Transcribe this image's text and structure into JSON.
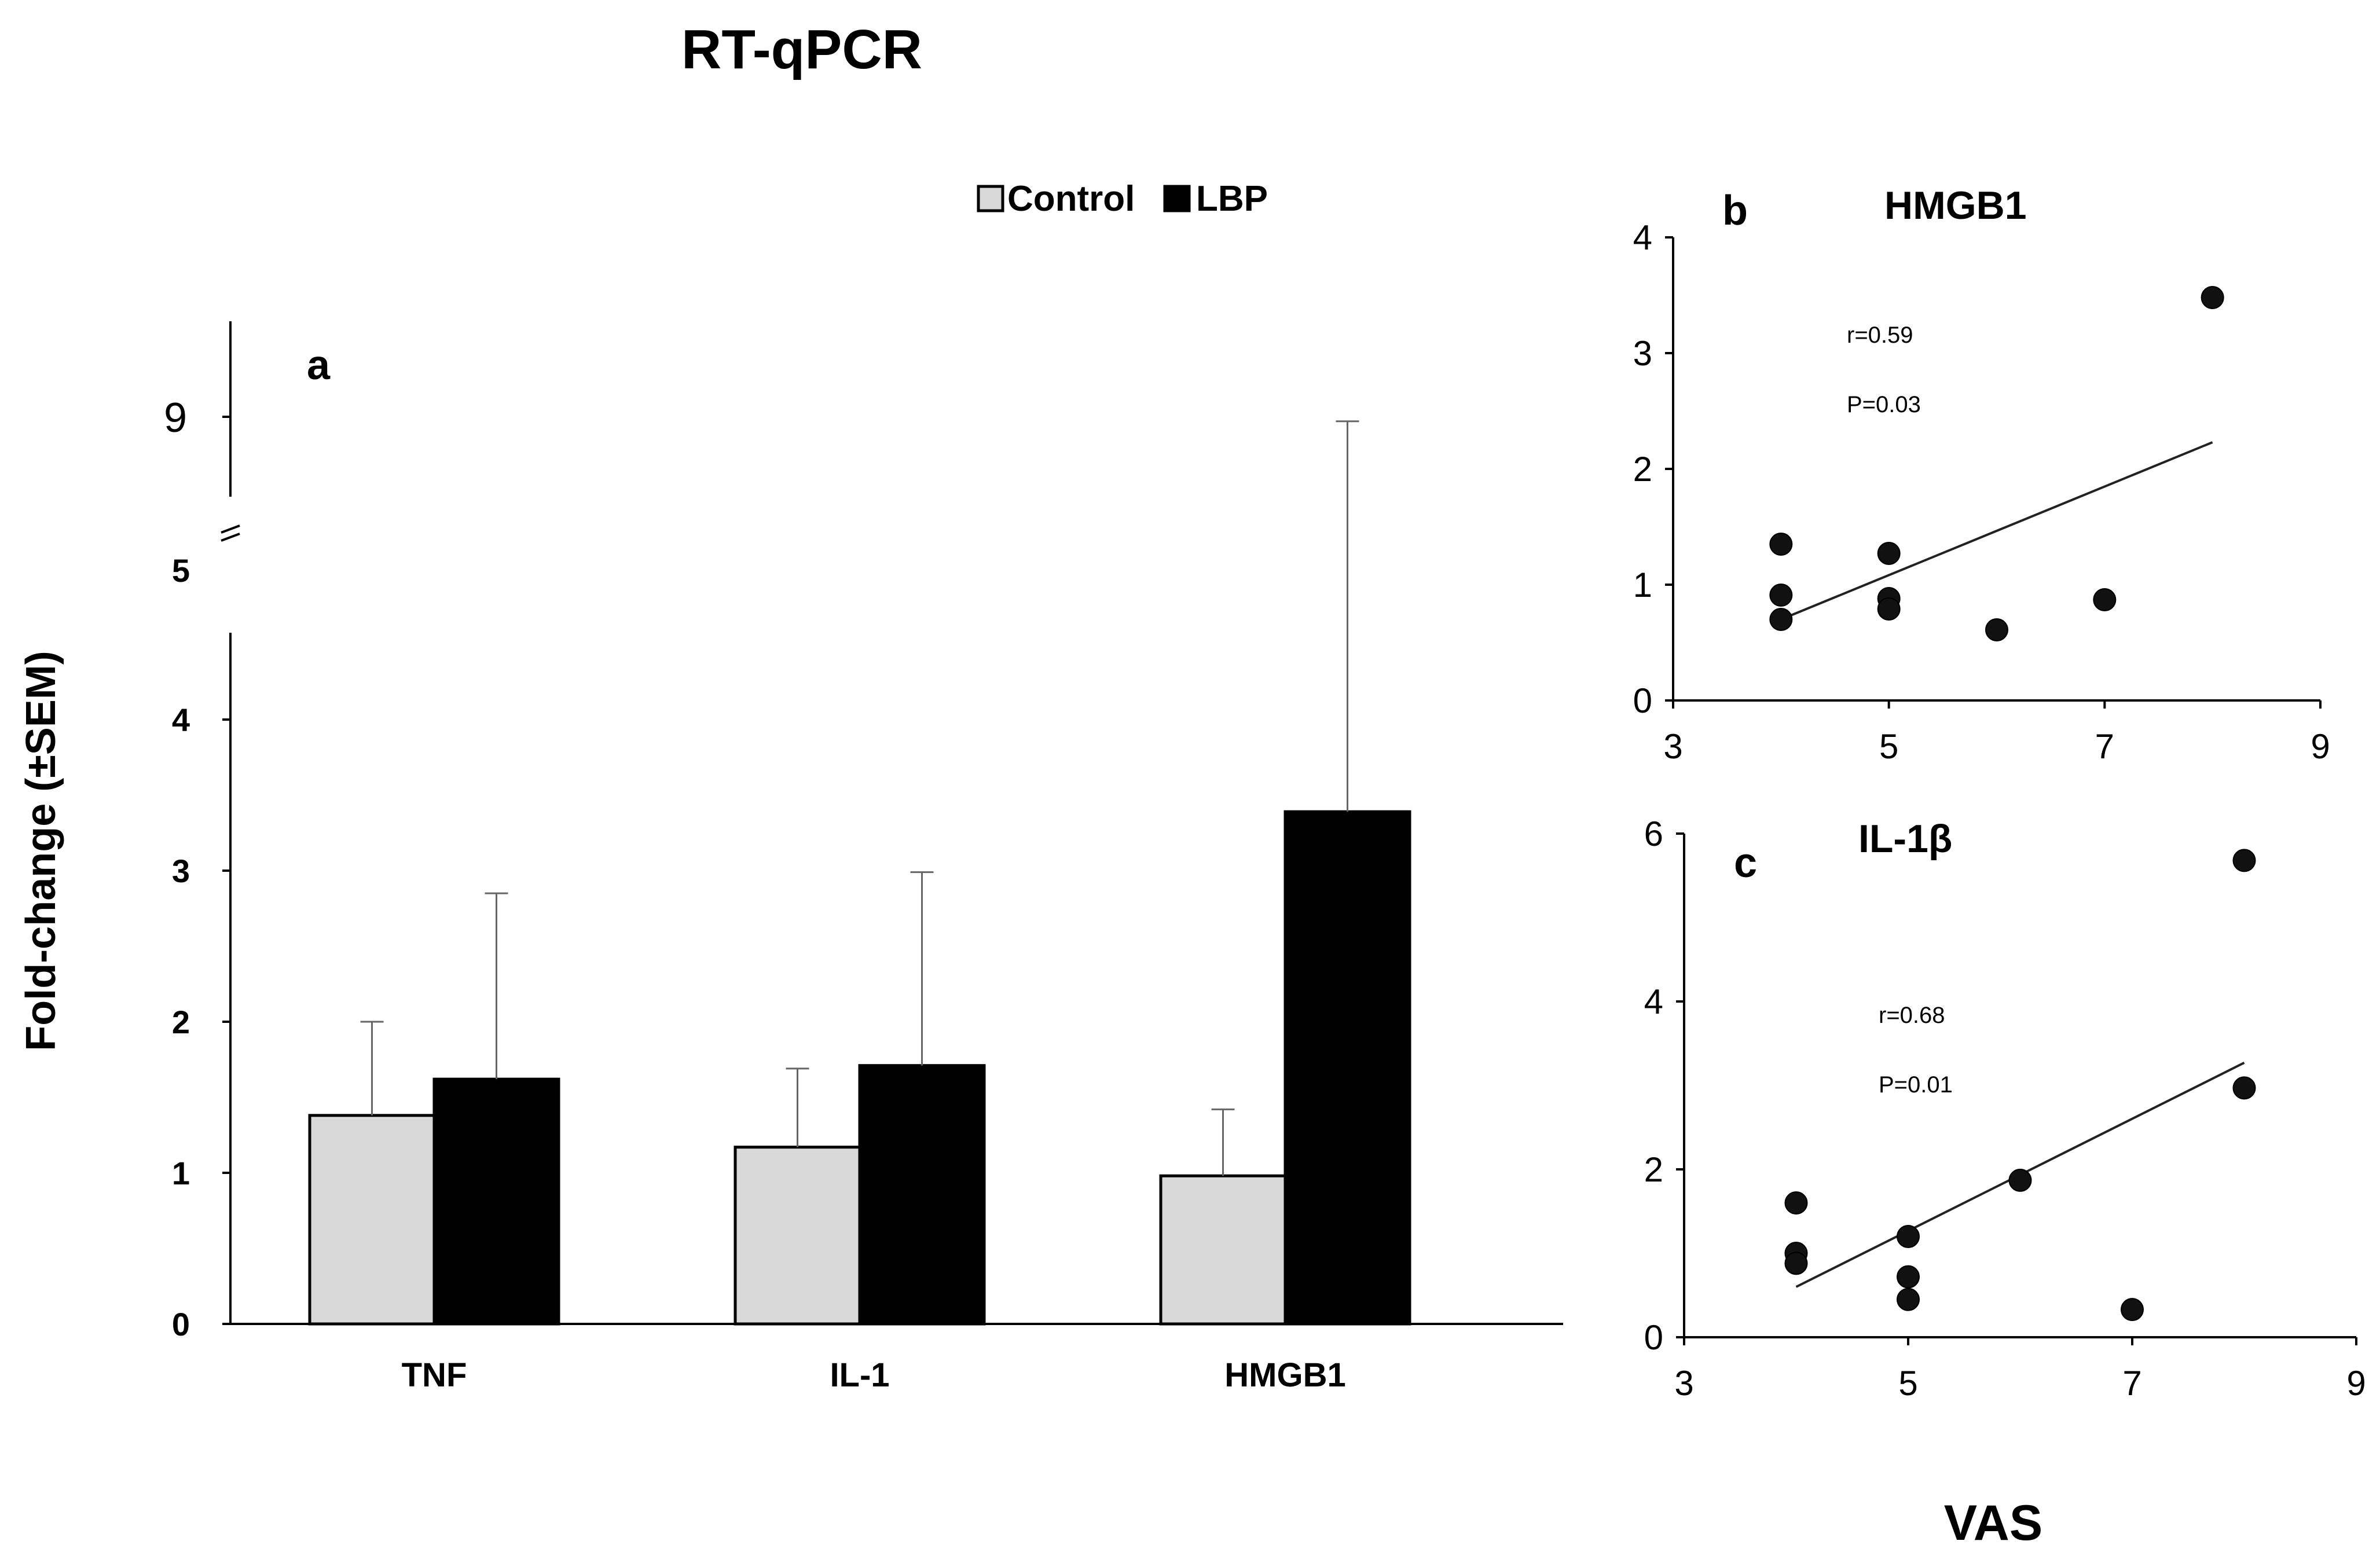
{
  "figure_title": "RT-qPCR",
  "x_axis_label": "VAS",
  "colors": {
    "control": "#d9d9d9",
    "lbp": "#000000",
    "axis": "#000000"
  },
  "chart_data": [
    {
      "panel": "a",
      "type": "bar",
      "title": "RT-qPCR",
      "ylabel": "Fold-change (±SEM)",
      "categories": [
        "TNF",
        "IL-1",
        "HMGB1"
      ],
      "series": [
        {
          "name": "Control",
          "values": [
            1.38,
            1.17,
            0.98
          ],
          "errors": [
            0.62,
            0.52,
            0.44
          ]
        },
        {
          "name": "LBP",
          "values": [
            1.62,
            1.71,
            3.39
          ],
          "errors": [
            1.23,
            1.28,
            5.55
          ]
        }
      ],
      "ylim": [
        0,
        9
      ],
      "axis_break": [
        5,
        9
      ],
      "yticks": [
        "0",
        "1",
        "2",
        "3",
        "4",
        "5",
        "9"
      ],
      "legend": "top-center"
    },
    {
      "panel": "b",
      "type": "scatter",
      "title": "HMGB1",
      "x": [
        4,
        4,
        4,
        5,
        5,
        5,
        6,
        7,
        8
      ],
      "y": [
        1.35,
        0.91,
        0.7,
        1.27,
        0.88,
        0.79,
        0.61,
        0.87,
        3.48
      ],
      "trendline": {
        "x": [
          4,
          8
        ],
        "y": [
          0.7,
          2.23
        ]
      },
      "xlim": [
        3,
        9
      ],
      "ylim": [
        0,
        4
      ],
      "xticks": [
        "3",
        "5",
        "7",
        "9"
      ],
      "yticks": [
        "0",
        "1",
        "2",
        "3",
        "4"
      ],
      "stats": [
        "r=0.59",
        "P=0.03"
      ]
    },
    {
      "panel": "c",
      "type": "scatter",
      "title": "IL-1β",
      "x": [
        4,
        4,
        4,
        5,
        5,
        5,
        6,
        7,
        8,
        8
      ],
      "y": [
        1.6,
        1.0,
        0.88,
        1.2,
        0.72,
        0.45,
        1.87,
        0.33,
        5.68,
        2.97
      ],
      "trendline": {
        "x": [
          4,
          8
        ],
        "y": [
          0.6,
          3.27
        ]
      },
      "xlim": [
        3,
        9
      ],
      "ylim": [
        0,
        6
      ],
      "xticks": [
        "3",
        "5",
        "7",
        "9"
      ],
      "yticks": [
        "0",
        "2",
        "4",
        "6"
      ],
      "stats": [
        "r=0.68",
        "P=0.01"
      ]
    }
  ]
}
